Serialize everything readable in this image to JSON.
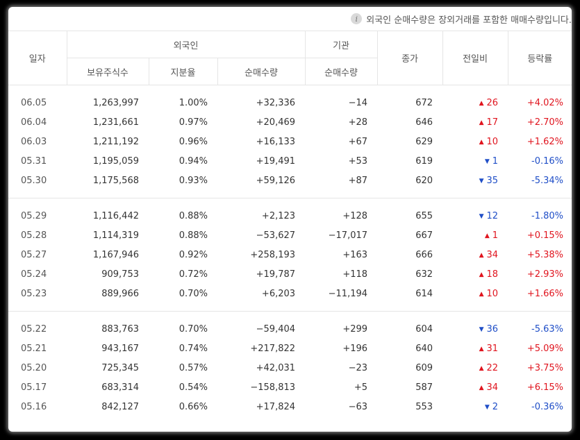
{
  "notice": {
    "icon": "info-icon",
    "text": "외국인 순매수량은 장외거래를 포함한 매매수량입니다."
  },
  "headers": {
    "date": "일자",
    "foreign": "외국인",
    "institution": "기관",
    "close": "종가",
    "change": "전일비",
    "rate": "등락률",
    "holdings": "보유주식수",
    "ratio": "지분율",
    "foreign_net": "순매수량",
    "inst_net": "순매수량"
  },
  "colors": {
    "up": "#e0141e",
    "down": "#1f4ec7"
  },
  "groups": [
    {
      "rows": [
        {
          "date": "06.05",
          "holdings": "1,263,997",
          "ratio": "1.00%",
          "foreign_net": "+32,336",
          "inst_net": "−14",
          "close": "672",
          "dir": "up",
          "change": "26",
          "rate": "+4.02%"
        },
        {
          "date": "06.04",
          "holdings": "1,231,661",
          "ratio": "0.97%",
          "foreign_net": "+20,469",
          "inst_net": "+28",
          "close": "646",
          "dir": "up",
          "change": "17",
          "rate": "+2.70%"
        },
        {
          "date": "06.03",
          "holdings": "1,211,192",
          "ratio": "0.96%",
          "foreign_net": "+16,133",
          "inst_net": "+67",
          "close": "629",
          "dir": "up",
          "change": "10",
          "rate": "+1.62%"
        },
        {
          "date": "05.31",
          "holdings": "1,195,059",
          "ratio": "0.94%",
          "foreign_net": "+19,491",
          "inst_net": "+53",
          "close": "619",
          "dir": "down",
          "change": "1",
          "rate": "-0.16%"
        },
        {
          "date": "05.30",
          "holdings": "1,175,568",
          "ratio": "0.93%",
          "foreign_net": "+59,126",
          "inst_net": "+87",
          "close": "620",
          "dir": "down",
          "change": "35",
          "rate": "-5.34%"
        }
      ]
    },
    {
      "rows": [
        {
          "date": "05.29",
          "holdings": "1,116,442",
          "ratio": "0.88%",
          "foreign_net": "+2,123",
          "inst_net": "+128",
          "close": "655",
          "dir": "down",
          "change": "12",
          "rate": "-1.80%"
        },
        {
          "date": "05.28",
          "holdings": "1,114,319",
          "ratio": "0.88%",
          "foreign_net": "−53,627",
          "inst_net": "−17,017",
          "close": "667",
          "dir": "up",
          "change": "1",
          "rate": "+0.15%"
        },
        {
          "date": "05.27",
          "holdings": "1,167,946",
          "ratio": "0.92%",
          "foreign_net": "+258,193",
          "inst_net": "+163",
          "close": "666",
          "dir": "up",
          "change": "34",
          "rate": "+5.38%"
        },
        {
          "date": "05.24",
          "holdings": "909,753",
          "ratio": "0.72%",
          "foreign_net": "+19,787",
          "inst_net": "+118",
          "close": "632",
          "dir": "up",
          "change": "18",
          "rate": "+2.93%"
        },
        {
          "date": "05.23",
          "holdings": "889,966",
          "ratio": "0.70%",
          "foreign_net": "+6,203",
          "inst_net": "−11,194",
          "close": "614",
          "dir": "up",
          "change": "10",
          "rate": "+1.66%"
        }
      ]
    },
    {
      "rows": [
        {
          "date": "05.22",
          "holdings": "883,763",
          "ratio": "0.70%",
          "foreign_net": "−59,404",
          "inst_net": "+299",
          "close": "604",
          "dir": "down",
          "change": "36",
          "rate": "-5.63%"
        },
        {
          "date": "05.21",
          "holdings": "943,167",
          "ratio": "0.74%",
          "foreign_net": "+217,822",
          "inst_net": "+196",
          "close": "640",
          "dir": "up",
          "change": "31",
          "rate": "+5.09%"
        },
        {
          "date": "05.20",
          "holdings": "725,345",
          "ratio": "0.57%",
          "foreign_net": "+42,031",
          "inst_net": "−23",
          "close": "609",
          "dir": "up",
          "change": "22",
          "rate": "+3.75%"
        },
        {
          "date": "05.17",
          "holdings": "683,314",
          "ratio": "0.54%",
          "foreign_net": "−158,813",
          "inst_net": "+5",
          "close": "587",
          "dir": "up",
          "change": "34",
          "rate": "+6.15%"
        },
        {
          "date": "05.16",
          "holdings": "842,127",
          "ratio": "0.66%",
          "foreign_net": "+17,824",
          "inst_net": "−63",
          "close": "553",
          "dir": "down",
          "change": "2",
          "rate": "-0.36%"
        }
      ]
    }
  ]
}
